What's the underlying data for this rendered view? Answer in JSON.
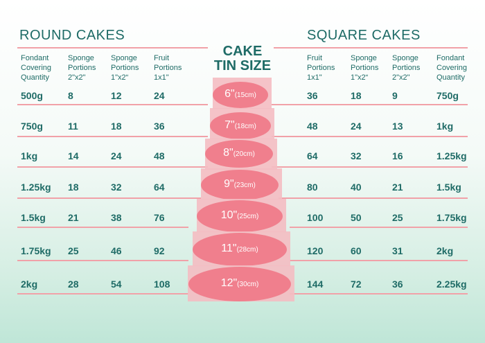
{
  "round_title": "ROUND CAKES",
  "square_title": "SQUARE CAKES",
  "tin_title": [
    "CAKE",
    "TIN SIZE"
  ],
  "round_headers": [
    [
      "Fondant",
      "Covering",
      "Quantity"
    ],
    [
      "Sponge",
      "Portions",
      "2\"x2\""
    ],
    [
      "Sponge",
      "Portions",
      "1\"x2“"
    ],
    [
      "Fruit",
      "Portions",
      "1x1\""
    ]
  ],
  "square_headers": [
    [
      "Fruit",
      "Portions",
      "1x1\""
    ],
    [
      "Sponge",
      "Portions",
      "1\"x2“"
    ],
    [
      "Sponge",
      "Portions",
      "2\"x2\""
    ],
    [
      "Fondant",
      "Covering",
      "Quantity"
    ]
  ],
  "rows": [
    {
      "tin": "6\"",
      "cm": "(15cm)",
      "round": [
        "500g",
        "8",
        "12",
        "24"
      ],
      "square": [
        "36",
        "18",
        "9",
        "750g"
      ]
    },
    {
      "tin": "7\"",
      "cm": "(18cm)",
      "round": [
        "750g",
        "11",
        "18",
        "36"
      ],
      "square": [
        "48",
        "24",
        "13",
        "1kg"
      ]
    },
    {
      "tin": "8\"",
      "cm": "(20cm)",
      "round": [
        "1kg",
        "14",
        "24",
        "48"
      ],
      "square": [
        "64",
        "32",
        "16",
        "1.25kg"
      ]
    },
    {
      "tin": "9\"",
      "cm": "(23cm)",
      "round": [
        "1.25kg",
        "18",
        "32",
        "64"
      ],
      "square": [
        "80",
        "40",
        "21",
        "1.5kg"
      ]
    },
    {
      "tin": "10\"",
      "cm": "(25cm)",
      "round": [
        "1.5kg",
        "21",
        "38",
        "76"
      ],
      "square": [
        "100",
        "50",
        "25",
        "1.75kg"
      ]
    },
    {
      "tin": "11\"",
      "cm": "(28cm)",
      "round": [
        "1.75kg",
        "25",
        "46",
        "92"
      ],
      "square": [
        "120",
        "60",
        "31",
        "2kg"
      ]
    },
    {
      "tin": "12\"",
      "cm": "(30cm)",
      "round": [
        "2kg",
        "28",
        "54",
        "108"
      ],
      "square": [
        "144",
        "72",
        "36",
        "2.25kg"
      ]
    }
  ],
  "colors": {
    "text": "#1e6b66",
    "line": "#f1a1a8",
    "oval": "#f07f8d",
    "tier": "#f4bcc2"
  }
}
